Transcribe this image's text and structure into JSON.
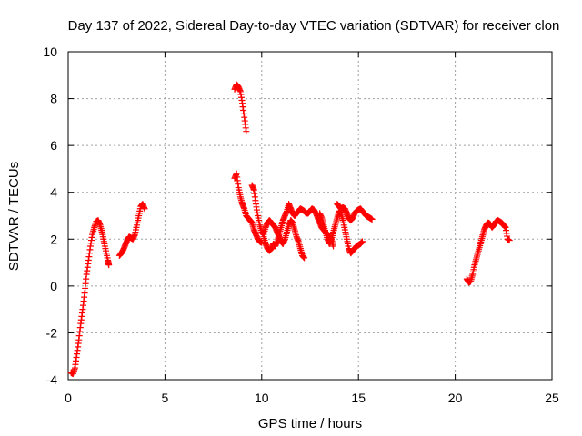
{
  "chart_data": {
    "type": "scatter",
    "title": "Day 137 of 2022, Sidereal Day-to-day VTEC variation (SDTVAR) for receiver clon",
    "xlabel": "GPS time / hours",
    "ylabel": "SDTVAR / TECUs",
    "xlim": [
      0,
      25
    ],
    "ylim": [
      -4,
      10
    ],
    "x_ticks": [
      0,
      5,
      10,
      15,
      20,
      25
    ],
    "y_ticks": [
      -4,
      -2,
      0,
      2,
      4,
      6,
      8,
      10
    ],
    "grid": true,
    "marker": "+",
    "marker_color": "#ff0000",
    "segments": [
      {
        "name": "arc-1",
        "x": [
          0.15,
          0.25,
          0.35,
          0.45,
          0.55,
          0.65,
          0.75,
          0.85,
          0.95,
          1.05,
          1.15,
          1.25,
          1.35,
          1.45,
          1.55,
          1.65,
          1.75,
          1.85,
          1.95,
          2.05,
          2.1
        ],
        "y": [
          -3.7,
          -3.75,
          -3.5,
          -2.9,
          -2.3,
          -1.6,
          -1.0,
          -0.3,
          0.5,
          1.1,
          1.7,
          2.2,
          2.5,
          2.75,
          2.8,
          2.6,
          2.3,
          1.9,
          1.5,
          1.1,
          0.9
        ]
      },
      {
        "name": "arc-2",
        "x": [
          2.65,
          2.75,
          2.85,
          2.95,
          3.05,
          3.15,
          3.25,
          3.35,
          3.45,
          3.55,
          3.65,
          3.75,
          3.85,
          3.95
        ],
        "y": [
          1.3,
          1.4,
          1.55,
          1.75,
          1.95,
          2.1,
          2.05,
          2.0,
          2.2,
          2.6,
          3.0,
          3.4,
          3.5,
          3.3
        ]
      },
      {
        "name": "arc-3",
        "x": [
          8.6,
          8.7,
          8.8,
          8.9,
          9.0,
          9.1,
          9.2
        ],
        "y": [
          8.4,
          8.6,
          8.5,
          8.3,
          7.8,
          7.2,
          6.6
        ]
      },
      {
        "name": "arc-4",
        "x": [
          8.6,
          8.7,
          8.8,
          8.9,
          9.0,
          9.1,
          9.2,
          9.3,
          9.4,
          9.5,
          9.6,
          9.7,
          9.8,
          9.9,
          10.0
        ],
        "y": [
          4.6,
          4.8,
          4.2,
          3.8,
          3.5,
          3.3,
          3.0,
          2.9,
          2.8,
          2.7,
          2.4,
          2.2,
          2.0,
          1.9,
          1.85
        ]
      },
      {
        "name": "arc-5",
        "x": [
          9.5,
          9.6,
          9.7,
          9.8,
          9.9,
          10.0,
          10.1,
          10.2,
          10.3,
          10.4,
          10.5,
          10.6,
          10.7,
          10.8,
          10.9,
          11.0,
          11.1,
          11.2,
          11.3,
          11.4,
          11.5,
          11.6,
          11.7,
          11.8,
          11.9,
          12.0,
          12.1,
          12.2
        ],
        "y": [
          4.3,
          4.1,
          3.5,
          3.0,
          2.6,
          2.3,
          2.2,
          2.5,
          2.7,
          2.8,
          2.7,
          2.6,
          2.5,
          2.3,
          2.1,
          1.9,
          1.8,
          2.0,
          2.3,
          2.6,
          2.8,
          2.7,
          2.4,
          2.1,
          1.9,
          1.6,
          1.3,
          1.2
        ]
      },
      {
        "name": "arc-6",
        "x": [
          10.1,
          10.2,
          10.3,
          10.4,
          10.5,
          10.6,
          10.7,
          10.8,
          10.9,
          11.0,
          11.1,
          11.2,
          11.3,
          11.4,
          11.5,
          11.6,
          11.7,
          11.8,
          11.9,
          12.0,
          12.1,
          12.2,
          12.3,
          12.4,
          12.5,
          12.6,
          12.7,
          12.8,
          12.9,
          13.0,
          13.1,
          13.2,
          13.3,
          13.4,
          13.5,
          13.6,
          13.7
        ],
        "y": [
          2.1,
          1.8,
          1.6,
          1.5,
          1.6,
          1.8,
          1.7,
          1.9,
          2.2,
          2.5,
          2.8,
          3.0,
          3.2,
          3.5,
          3.3,
          3.1,
          3.0,
          3.1,
          3.2,
          3.3,
          3.25,
          3.2,
          3.1,
          3.1,
          3.2,
          3.3,
          3.25,
          3.1,
          2.9,
          2.7,
          2.5,
          2.4,
          2.3,
          2.2,
          2.1,
          2.0,
          1.7
        ]
      },
      {
        "name": "arc-7",
        "x": [
          13.0,
          13.1,
          13.2,
          13.3,
          13.4,
          13.5,
          13.6,
          13.7,
          13.8,
          13.9,
          14.0,
          14.1,
          14.2,
          14.3,
          14.4,
          14.5,
          14.6,
          14.7,
          14.8,
          14.9,
          15.0,
          15.1,
          15.2
        ],
        "y": [
          3.1,
          2.9,
          2.6,
          2.3,
          2.0,
          1.8,
          2.0,
          2.3,
          2.6,
          2.9,
          3.2,
          3.1,
          2.8,
          2.4,
          2.0,
          1.6,
          1.4,
          1.5,
          1.6,
          1.7,
          1.75,
          1.8,
          1.9
        ]
      },
      {
        "name": "arc-8",
        "x": [
          13.9,
          14.0,
          14.1,
          14.2,
          14.3,
          14.4,
          14.5,
          14.6,
          14.7,
          14.8,
          14.9,
          15.0,
          15.1,
          15.2,
          15.3,
          15.4,
          15.5,
          15.6,
          15.7
        ],
        "y": [
          3.5,
          3.4,
          3.3,
          3.35,
          3.3,
          3.1,
          2.9,
          2.8,
          2.9,
          3.1,
          3.2,
          3.25,
          3.3,
          3.2,
          3.1,
          3.0,
          2.95,
          2.9,
          2.85
        ]
      },
      {
        "name": "arc-9",
        "x": [
          20.6,
          20.7,
          20.8,
          20.9,
          21.0,
          21.1,
          21.2,
          21.3,
          21.4,
          21.5,
          21.6,
          21.7,
          21.8,
          21.9,
          22.0,
          22.1,
          22.2,
          22.3,
          22.4,
          22.5,
          22.6,
          22.7,
          22.8
        ],
        "y": [
          0.3,
          0.15,
          0.2,
          0.5,
          0.9,
          1.2,
          1.5,
          1.8,
          2.1,
          2.4,
          2.6,
          2.7,
          2.65,
          2.5,
          2.6,
          2.75,
          2.8,
          2.75,
          2.7,
          2.6,
          2.5,
          2.0,
          1.95
        ]
      }
    ]
  }
}
